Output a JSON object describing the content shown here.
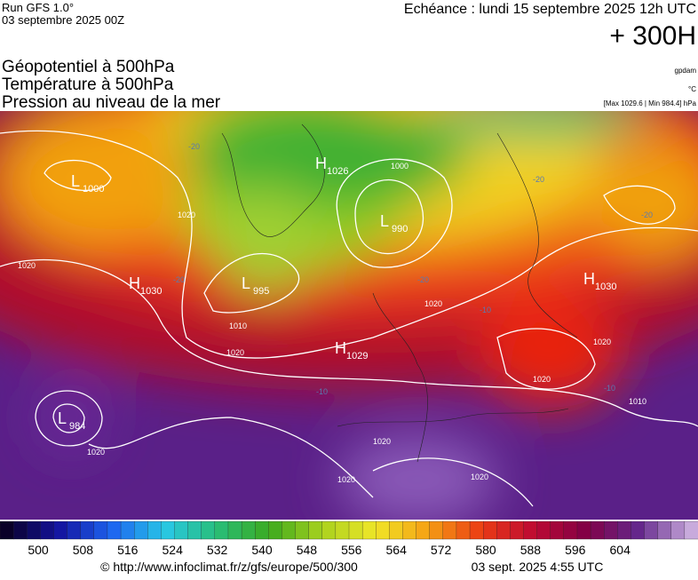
{
  "header": {
    "run": "Run GFS 1.0°",
    "run_date": "03 septembre 2025 00Z",
    "valid": "Echéance : lundi 15 septembre 2025 12h UTC",
    "lead": "+ 300H"
  },
  "fields": [
    "Géopotentiel à 500hPa",
    "Température à 500hPa",
    "Pression au niveau de la mer"
  ],
  "units": {
    "geopotential": "gpdam",
    "temperature": "°C",
    "pressure": "[Max 1029.6 | Min 984.4] hPa"
  },
  "centers": [
    {
      "symbol": "L",
      "value": "1000"
    },
    {
      "symbol": "H",
      "value": "1026"
    },
    {
      "symbol": "L",
      "value": "990"
    },
    {
      "symbol": "H",
      "value": "1030"
    },
    {
      "symbol": "L",
      "value": "995"
    },
    {
      "symbol": "H",
      "value": "1029"
    },
    {
      "symbol": "H",
      "value": "1030"
    },
    {
      "symbol": "L",
      "value": "984"
    }
  ],
  "isobar_labels": [
    "1000",
    "1020",
    "1020",
    "1010",
    "1020",
    "1020",
    "1020",
    "1020",
    "1010",
    "1020",
    "1020",
    "1020",
    "1020"
  ],
  "temperature_labels": [
    "-20",
    "-20",
    "-20",
    "-20",
    "-20",
    "-10",
    "-10",
    "-10"
  ],
  "colorbar": [
    "500",
    "508",
    "516",
    "524",
    "532",
    "540",
    "548",
    "556",
    "564",
    "572",
    "580",
    "588",
    "596",
    "604"
  ],
  "footer": {
    "source": "© http://www.infoclimat.fr/z/gfs/europe/500/300",
    "generated": "03 sept. 2025  4:55 UTC"
  }
}
